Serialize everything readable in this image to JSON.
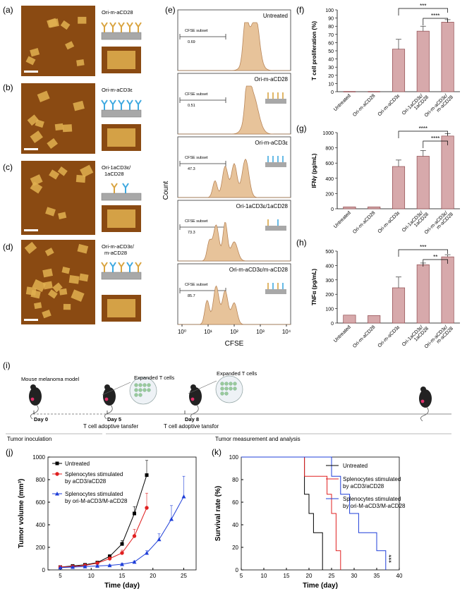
{
  "figure_type": "multi-panel scientific figure",
  "panel_letters": {
    "a": "(a)",
    "b": "(b)",
    "c": "(c)",
    "d": "(d)",
    "e": "(e)",
    "f": "(f)",
    "g": "(g)",
    "h": "(h)",
    "i": "(i)",
    "j": "(j)",
    "k": "(k)"
  },
  "afm_panels": [
    {
      "label": "Ori-m-aCD28"
    },
    {
      "label": "Ori-m-aCD3ε"
    },
    {
      "label": "Ori-1aCD3ε/ 1aCD28"
    },
    {
      "label": "Ori-m-aCD3ε/ m-aCD28"
    }
  ],
  "colors": {
    "afm_bg": "#8a4a12",
    "afm_tile": "#e0b050",
    "cd28_antibody": "#d9a441",
    "cd3_antibody": "#3fa9e0",
    "origami_gray": "#a8a8a8",
    "histogram_fill": "#e7c39a",
    "histogram_stroke": "#b8865a",
    "bar_fill": "#d7a9ab",
    "bar_stroke": "#8f4a4e",
    "untreated": "#000000",
    "aCD3_aCD28": "#e02020",
    "ori": "#1f3fd8"
  },
  "flow_panel": {
    "ylabel": "Count",
    "xlabel": "CFSE",
    "x_ticks": [
      "10⁰",
      "10¹",
      "10²",
      "10³",
      "10⁴"
    ],
    "rows": [
      {
        "title": "Untreated",
        "gate_label": "CFSE subset",
        "gate_value": "0.69"
      },
      {
        "title": "Ori-m-aCD28",
        "gate_label": "CFSE subset",
        "gate_value": "0.51"
      },
      {
        "title": "Ori-m-aCD3ε",
        "gate_label": "CFSE subset",
        "gate_value": "47.3"
      },
      {
        "title": "Ori-1aCD3ε/1aCD28",
        "gate_label": "CFSE subset",
        "gate_value": "73.3"
      },
      {
        "title": "Ori-m-aCD3ε/m-aCD28",
        "gate_label": "CFSE subset",
        "gate_value": "85.7"
      }
    ]
  },
  "chart_data": [
    {
      "id": "f",
      "type": "bar",
      "title": "",
      "categories": [
        "Untreated",
        "Ori-m-aCD28",
        "Ori-m-aCD3ε",
        "Ori-1aCD3ε/ 1aCD28",
        "Ori-m-aCD3ε/ m-aCD28"
      ],
      "values": [
        0,
        0,
        52,
        74,
        85
      ],
      "errors": [
        0,
        0,
        12,
        6,
        3
      ],
      "ylabel": "T cell proliferation (%)",
      "ylim": [
        0,
        100
      ],
      "yticks": [
        0,
        10,
        20,
        30,
        40,
        50,
        60,
        70,
        80,
        90,
        100
      ],
      "significance": [
        {
          "from": 2,
          "to": 4,
          "text": "***"
        },
        {
          "from": 3,
          "to": 4,
          "text": "****"
        }
      ]
    },
    {
      "id": "g",
      "type": "bar",
      "title": "",
      "categories": [
        "Untreated",
        "Ori-m-aCD28",
        "Ori-m-aCD3ε",
        "Ori-1aCD3ε/ 1aCD28",
        "Ori-m-aCD3ε/ m-aCD28"
      ],
      "values": [
        25,
        25,
        555,
        690,
        955
      ],
      "errors": [
        0,
        0,
        85,
        75,
        30
      ],
      "ylabel": "IFNγ (pg/mL)",
      "ylim": [
        0,
        1000
      ],
      "yticks": [
        0,
        200,
        400,
        600,
        800,
        1000
      ],
      "significance": [
        {
          "from": 2,
          "to": 4,
          "text": "****"
        },
        {
          "from": 3,
          "to": 4,
          "text": "****"
        }
      ]
    },
    {
      "id": "h",
      "type": "bar",
      "title": "",
      "categories": [
        "Untreated",
        "Ori-m-aCD28",
        "Ori-m-aCD3ε",
        "Ori-1aCD3ε/ 1aCD28",
        "Ori-m-aCD3ε/ m-aCD28"
      ],
      "values": [
        55,
        52,
        245,
        405,
        460
      ],
      "errors": [
        0,
        0,
        75,
        12,
        15
      ],
      "ylabel": "TNFα (pg/mL)",
      "ylim": [
        0,
        500
      ],
      "yticks": [
        0,
        100,
        200,
        300,
        400,
        500
      ],
      "significance": [
        {
          "from": 2,
          "to": 4,
          "text": "***"
        },
        {
          "from": 3,
          "to": 4,
          "text": "**"
        }
      ]
    },
    {
      "id": "j",
      "type": "line",
      "xlabel": "Time (day)",
      "ylabel": "Tumor volume (mm³)",
      "xlim": [
        3,
        27
      ],
      "ylim": [
        0,
        1000
      ],
      "xticks": [
        5,
        10,
        15,
        20,
        25
      ],
      "yticks": [
        0,
        200,
        400,
        600,
        800,
        1000
      ],
      "series": [
        {
          "name": "Untreated",
          "color": "#000000",
          "marker": "square",
          "x": [
            5,
            7,
            9,
            11,
            13,
            15,
            17,
            19
          ],
          "y": [
            25,
            35,
            45,
            65,
            120,
            230,
            500,
            840
          ],
          "err": [
            5,
            5,
            6,
            8,
            15,
            30,
            60,
            130
          ]
        },
        {
          "name": "Splenocytes stimulated by aCD3/aCD28",
          "color": "#e02020",
          "marker": "circle",
          "x": [
            5,
            7,
            9,
            11,
            13,
            15,
            17,
            19
          ],
          "y": [
            25,
            30,
            40,
            60,
            100,
            150,
            300,
            550
          ],
          "err": [
            5,
            5,
            6,
            8,
            15,
            25,
            60,
            130
          ]
        },
        {
          "name": "Splenocytes stimulated by ori-M-aCD3/M-aCD28",
          "color": "#1f3fd8",
          "marker": "triangle",
          "x": [
            5,
            7,
            9,
            11,
            13,
            15,
            17,
            19,
            21,
            23,
            25
          ],
          "y": [
            20,
            25,
            30,
            35,
            40,
            50,
            70,
            150,
            270,
            450,
            650
          ],
          "err": [
            4,
            4,
            5,
            5,
            6,
            8,
            10,
            20,
            50,
            120,
            180
          ]
        }
      ]
    },
    {
      "id": "k",
      "type": "line",
      "step": true,
      "xlabel": "Time (day)",
      "ylabel": "Survival rate (%)",
      "xlim": [
        5,
        40
      ],
      "ylim": [
        0,
        100
      ],
      "xticks": [
        5,
        10,
        15,
        20,
        25,
        30,
        35,
        40
      ],
      "yticks": [
        0,
        20,
        40,
        60,
        80,
        100
      ],
      "series": [
        {
          "name": "Untreated",
          "color": "#000000",
          "x": [
            5,
            19,
            20,
            21,
            23
          ],
          "y": [
            100,
            67,
            50,
            33,
            0
          ]
        },
        {
          "name": "Splenocytes stimulated by aCD3/aCD28",
          "color": "#e02020",
          "x": [
            5,
            19,
            24,
            25,
            26,
            27
          ],
          "y": [
            100,
            83,
            67,
            50,
            17,
            0
          ]
        },
        {
          "name": "Splenocytes stimulated by ori-M-aCD3/M-aCD28",
          "color": "#1f3fd8",
          "x": [
            5,
            25,
            27,
            29,
            31,
            35,
            37
          ],
          "y": [
            100,
            83,
            67,
            50,
            33,
            17,
            0
          ]
        }
      ],
      "significance_text": "***"
    }
  ],
  "timeline": {
    "model_label": "Mouse melanoma model",
    "days": [
      "Day 0",
      "Day 5",
      "Day 8"
    ],
    "expanded_label": "Expanded T cells",
    "transfer_label_1": "T cell adoptive tansfer",
    "transfer_label_2": "T cell adoptive tansfor",
    "inoculation_label": "Tumor inoculation",
    "measurement_label": "Tumor measurement and analysis"
  }
}
